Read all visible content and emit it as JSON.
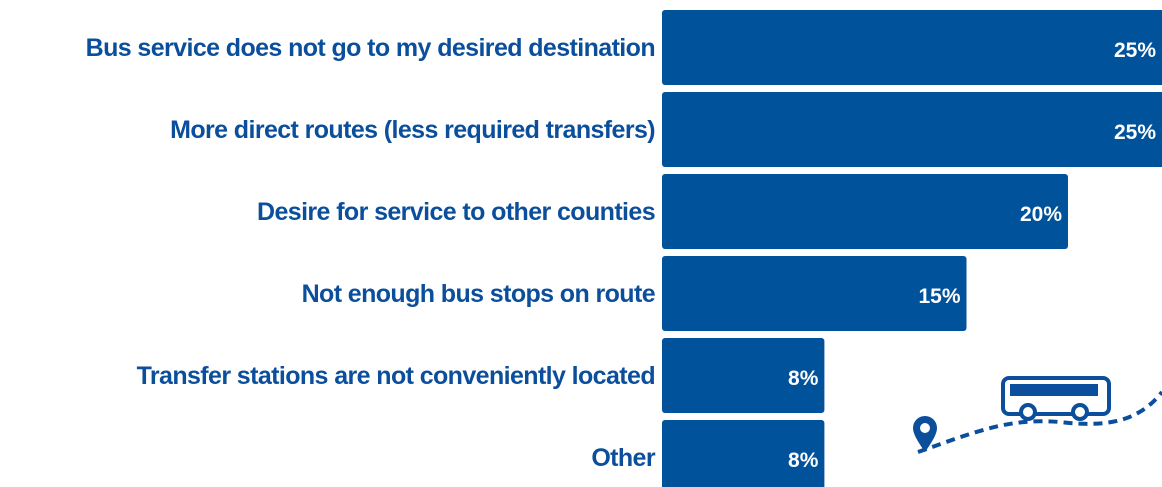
{
  "chart_data": {
    "type": "bar",
    "orientation": "horizontal",
    "categories": [
      "Bus service does not go to my desired destination",
      "More direct routes (less required transfers)",
      "Desire for service to other counties",
      "Not enough bus stops on route",
      "Transfer stations are not conveniently located",
      "Other"
    ],
    "values": [
      25,
      25,
      20,
      15,
      8,
      8
    ],
    "value_labels": [
      "25%",
      "25%",
      "20%",
      "15%",
      "8%",
      "8%"
    ],
    "color": "#00529b"
  }
}
